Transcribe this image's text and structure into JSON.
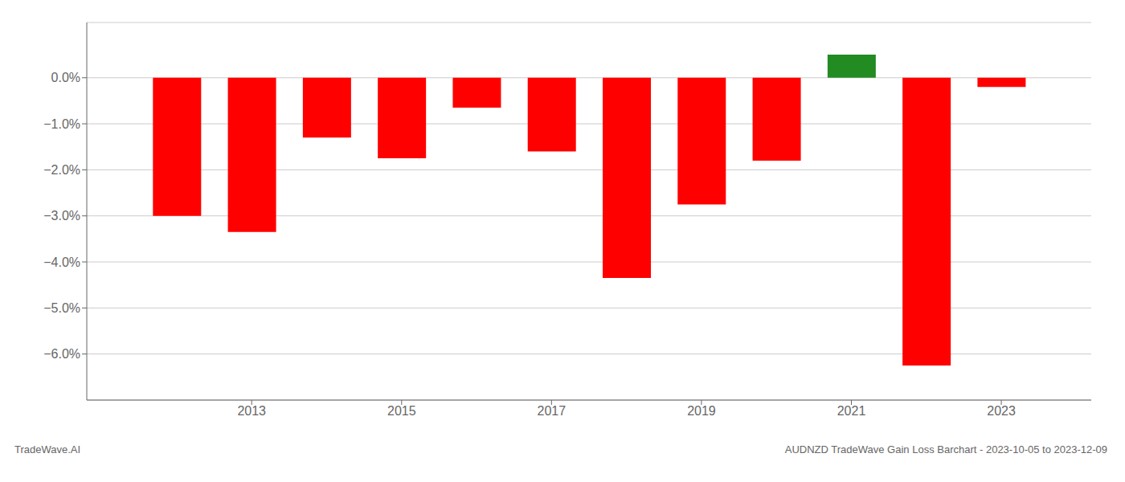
{
  "chart_data": {
    "type": "bar",
    "title": "AUDNZD TradeWave Gain Loss Barchart - 2023-10-05 to 2023-12-09",
    "annotations": [
      "TradeWave.AI"
    ],
    "x": [
      2012,
      2013,
      2014,
      2015,
      2016,
      2017,
      2018,
      2019,
      2020,
      2021,
      2022,
      2023
    ],
    "values": [
      -3.0,
      -3.35,
      -1.3,
      -1.75,
      -0.65,
      -1.6,
      -4.35,
      -2.75,
      -1.8,
      0.5,
      -6.25,
      -0.2
    ],
    "colors": [
      "#ff0000",
      "#ff0000",
      "#ff0000",
      "#ff0000",
      "#ff0000",
      "#ff0000",
      "#ff0000",
      "#ff0000",
      "#ff0000",
      "#228B22",
      "#ff0000",
      "#ff0000"
    ],
    "xlim": [
      2010.8,
      2024.2
    ],
    "xticks": [
      2013,
      2015,
      2017,
      2019,
      2021,
      2023
    ],
    "ylim": [
      -7.0,
      1.2
    ],
    "yticks": [
      {
        "value": 0.0,
        "label": "0.0%"
      },
      {
        "value": -1.0,
        "label": "−1.0%"
      },
      {
        "value": -2.0,
        "label": "−2.0%"
      },
      {
        "value": -3.0,
        "label": "−3.0%"
      },
      {
        "value": -4.0,
        "label": "−4.0%"
      },
      {
        "value": -5.0,
        "label": "−5.0%"
      },
      {
        "value": -6.0,
        "label": "−6.0%"
      }
    ],
    "grid": true
  }
}
